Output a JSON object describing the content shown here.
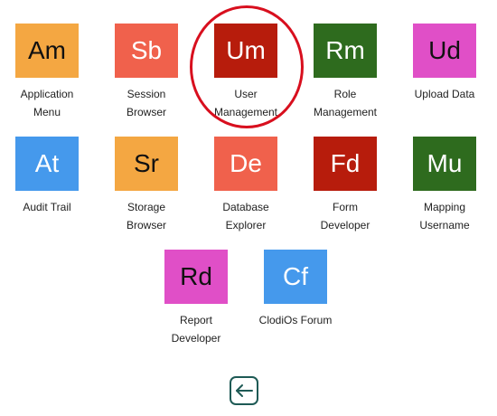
{
  "tiles": [
    {
      "abbr": "Am",
      "label": [
        "Application",
        "Menu"
      ],
      "bg": "#f4a742",
      "fg": "#111111"
    },
    {
      "abbr": "Sb",
      "label": [
        "Session",
        "Browser"
      ],
      "bg": "#f0614c",
      "fg": "#ffffff"
    },
    {
      "abbr": "Um",
      "label": [
        "User",
        "Management"
      ],
      "bg": "#b71c0c",
      "fg": "#ffffff"
    },
    {
      "abbr": "Rm",
      "label": [
        "Role",
        "Management"
      ],
      "bg": "#2e6b1e",
      "fg": "#ffffff"
    },
    {
      "abbr": "Ud",
      "label": [
        "Upload Data"
      ],
      "bg": "#e04fc7",
      "fg": "#111111"
    },
    {
      "abbr": "At",
      "label": [
        "Audit Trail"
      ],
      "bg": "#4599ec",
      "fg": "#ffffff"
    },
    {
      "abbr": "Sr",
      "label": [
        "Storage",
        "Browser"
      ],
      "bg": "#f4a742",
      "fg": "#111111"
    },
    {
      "abbr": "De",
      "label": [
        "Database",
        "Explorer"
      ],
      "bg": "#f0614c",
      "fg": "#ffffff"
    },
    {
      "abbr": "Fd",
      "label": [
        "Form",
        "Developer"
      ],
      "bg": "#b71c0c",
      "fg": "#ffffff"
    },
    {
      "abbr": "Mu",
      "label": [
        "Mapping",
        "Username"
      ],
      "bg": "#2e6b1e",
      "fg": "#ffffff"
    },
    {
      "abbr": "Rd",
      "label": [
        "Report",
        "Developer"
      ],
      "bg": "#e04fc7",
      "fg": "#111111"
    },
    {
      "abbr": "Cf",
      "label": [
        "ClodiOs Forum"
      ],
      "bg": "#4599ec",
      "fg": "#ffffff"
    }
  ],
  "highlight": {
    "color": "#d80f1e"
  },
  "back_button": {
    "icon": "arrow-left-icon",
    "color": "#1e5a55"
  }
}
